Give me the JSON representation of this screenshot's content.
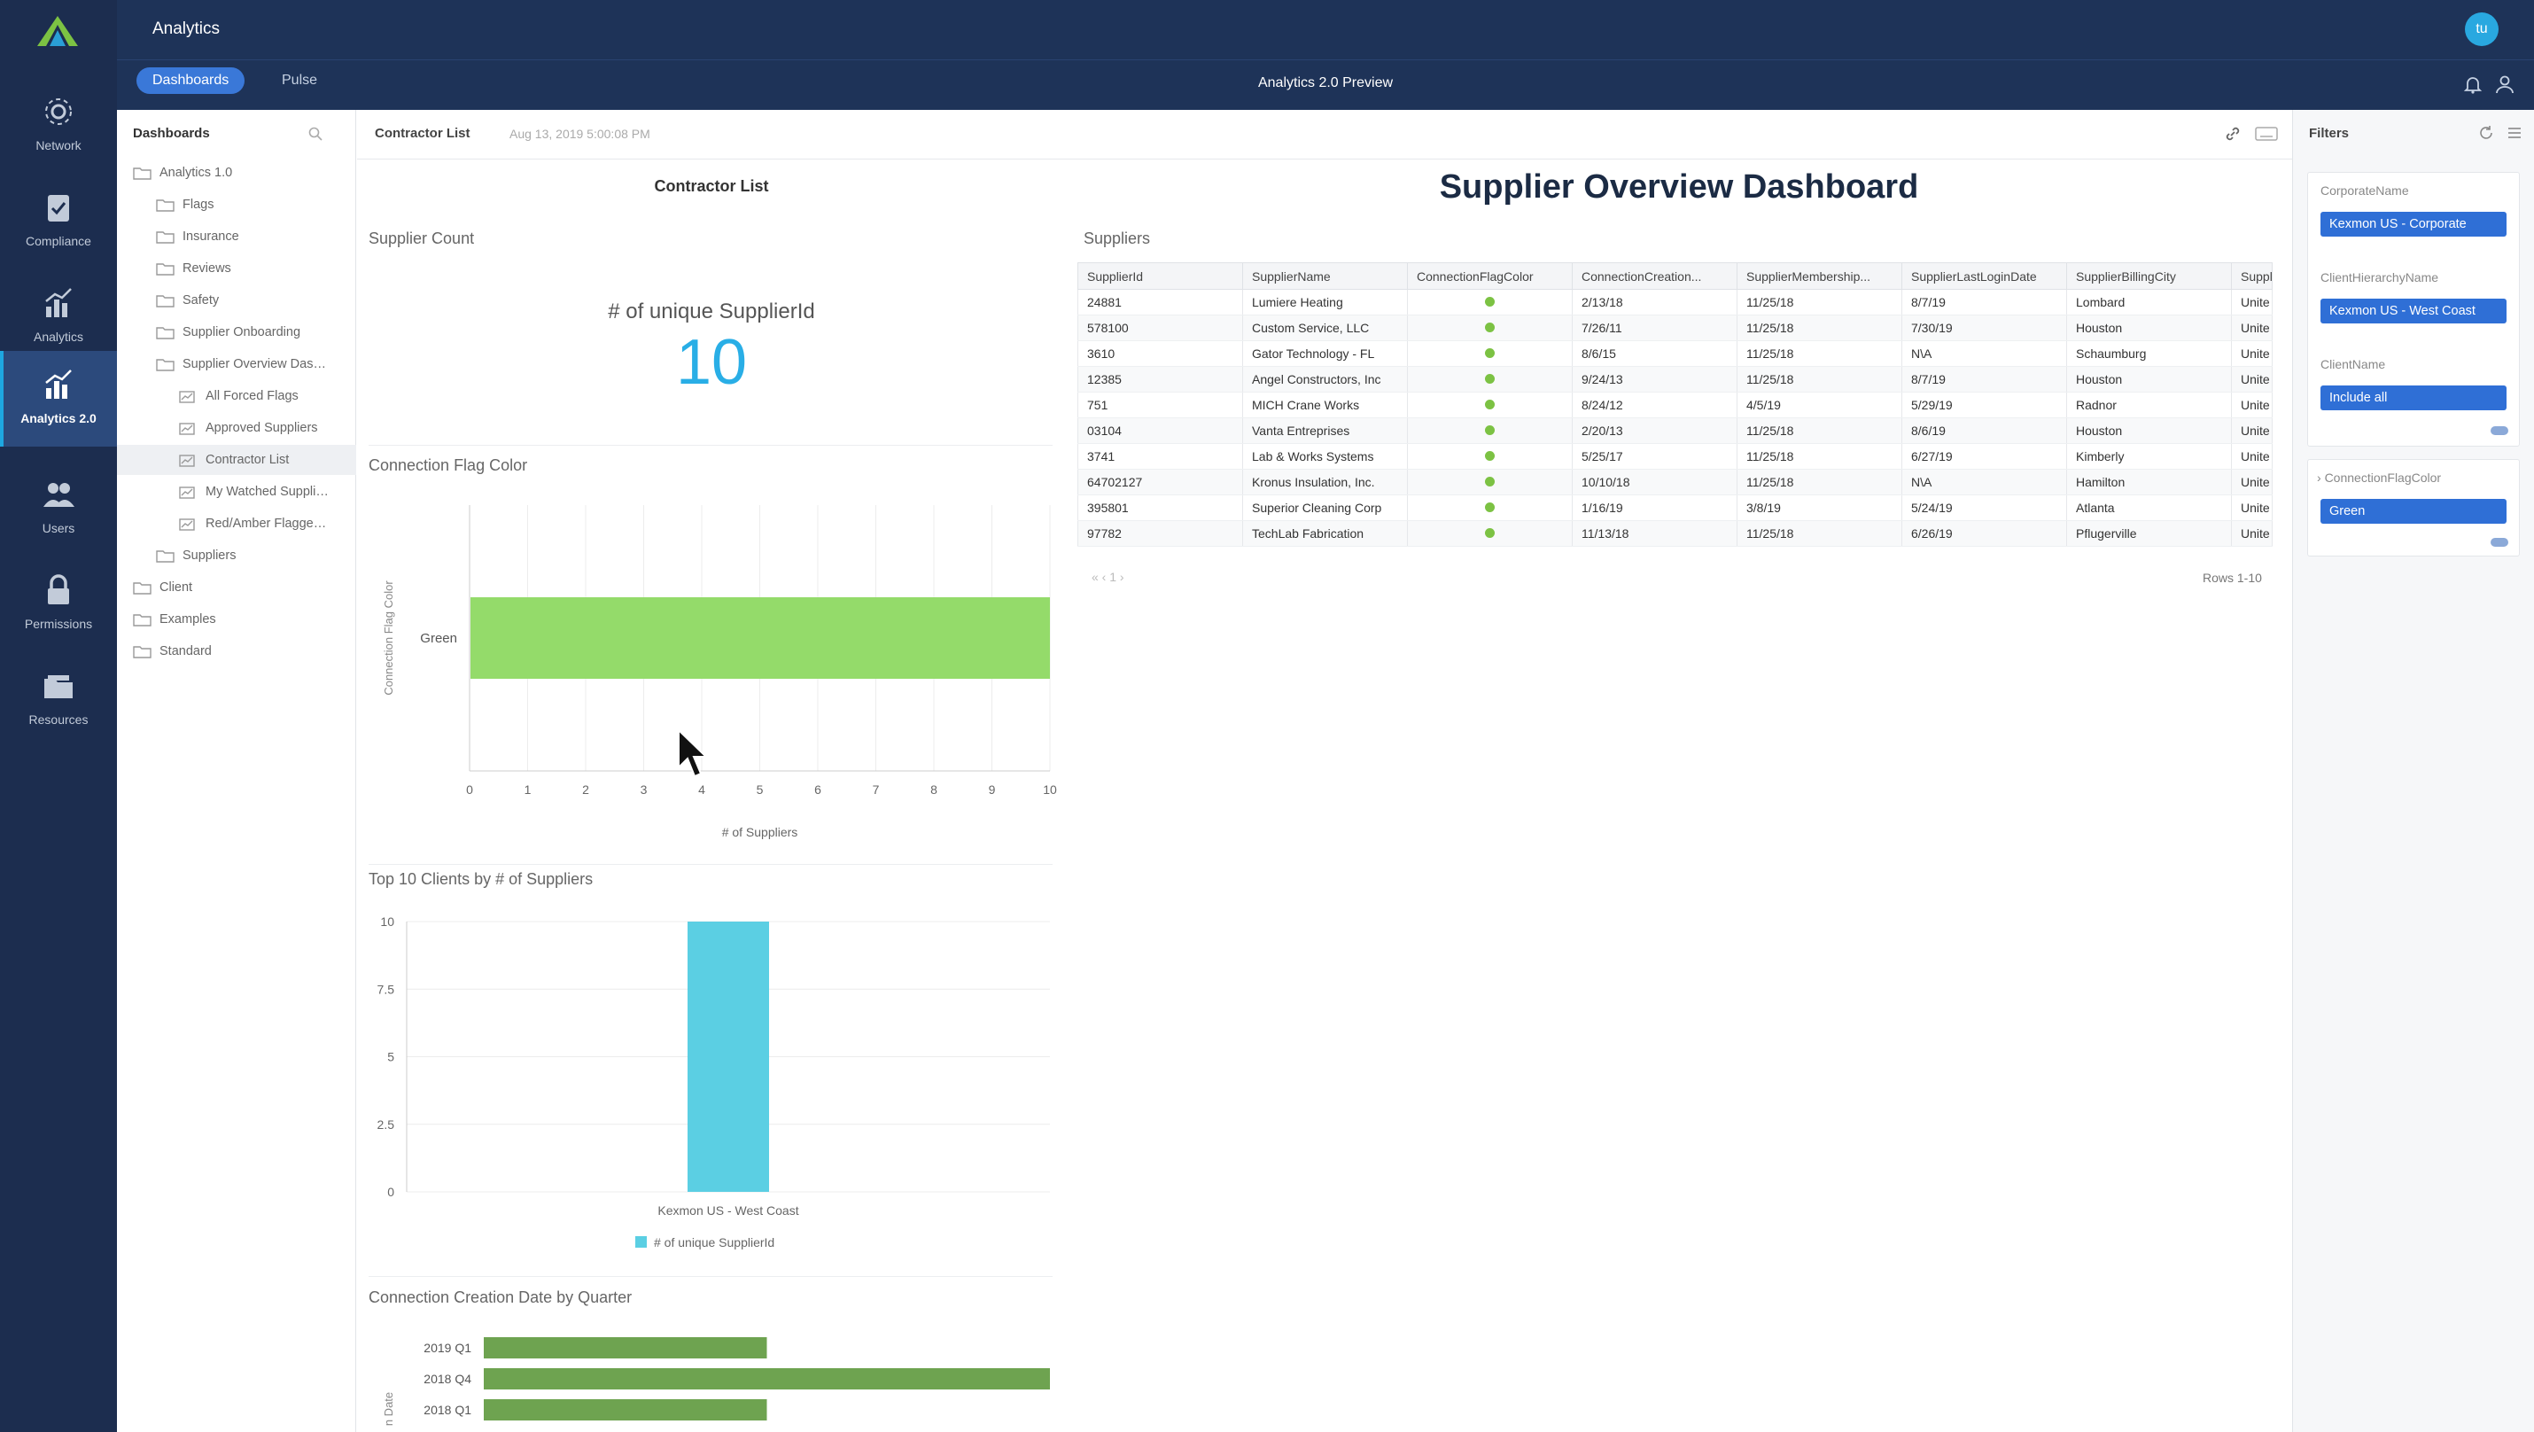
{
  "app": {
    "title": "Analytics",
    "avatar_initials": "tu"
  },
  "nav": [
    {
      "label": "Network",
      "icon": "network-icon"
    },
    {
      "label": "Compliance",
      "icon": "compliance-icon"
    },
    {
      "label": "Analytics",
      "icon": "analytics-icon"
    },
    {
      "label": "Analytics 2.0",
      "icon": "analytics-2-icon",
      "active": true
    },
    {
      "label": "Users",
      "icon": "users-icon"
    },
    {
      "label": "Permissions",
      "icon": "lock-icon"
    },
    {
      "label": "Resources",
      "icon": "folder-icon"
    }
  ],
  "subnav": {
    "tabs": [
      {
        "label": "Dashboards",
        "active": true
      },
      {
        "label": "Pulse"
      }
    ],
    "title": "Analytics 2.0 Preview"
  },
  "tree": {
    "title": "Dashboards",
    "items": [
      {
        "label": "Analytics 1.0"
      },
      {
        "label": "Flags"
      },
      {
        "label": "Insurance"
      },
      {
        "label": "Reviews"
      },
      {
        "label": "Safety"
      },
      {
        "label": "Supplier Onboarding"
      },
      {
        "label": "Supplier Overview Dashb..."
      },
      {
        "label": "All Forced Flags"
      },
      {
        "label": "Approved Suppliers"
      },
      {
        "label": "Contractor List",
        "selected": true
      },
      {
        "label": "My Watched Suppliers"
      },
      {
        "label": "Red/Amber Flagged a..."
      },
      {
        "label": "Suppliers"
      },
      {
        "label": "Client"
      },
      {
        "label": "Examples"
      },
      {
        "label": "Standard"
      }
    ]
  },
  "main": {
    "breadcrumb": "Contractor List",
    "timestamp": "Aug 13, 2019 5:00:08 PM",
    "left_title": "Contractor List",
    "dashboard_title": "Supplier Overview Dashboard",
    "supplier_count": {
      "title": "Supplier Count",
      "label": "# of unique SupplierId",
      "value": "10"
    }
  },
  "table": {
    "title": "Suppliers",
    "columns": [
      "SupplierId",
      "SupplierName",
      "ConnectionFlagColor",
      "ConnectionCreation...",
      "SupplierMembership...",
      "SupplierLastLoginDate",
      "SupplierBillingCity",
      "Suppl"
    ],
    "rows": [
      [
        "24881",
        "Lumiere Heating",
        "",
        "2/13/18",
        "11/25/18",
        "8/7/19",
        "Lombard",
        "Unite"
      ],
      [
        "578100",
        "Custom Service, LLC",
        "",
        "7/26/11",
        "11/25/18",
        "7/30/19",
        "Houston",
        "Unite"
      ],
      [
        "3610",
        "Gator Technology - FL",
        "",
        "8/6/15",
        "11/25/18",
        "N\\A",
        "Schaumburg",
        "Unite"
      ],
      [
        "12385",
        "Angel Constructors, Inc",
        "",
        "9/24/13",
        "11/25/18",
        "8/7/19",
        "Houston",
        "Unite"
      ],
      [
        "751",
        "MICH Crane Works",
        "",
        "8/24/12",
        "4/5/19",
        "5/29/19",
        "Radnor",
        "Unite"
      ],
      [
        "03104",
        "Vanta Entreprises",
        "",
        "2/20/13",
        "11/25/18",
        "8/6/19",
        "Houston",
        "Unite"
      ],
      [
        "3741",
        "Lab & Works Systems",
        "",
        "5/25/17",
        "11/25/18",
        "6/27/19",
        "Kimberly",
        "Unite"
      ],
      [
        "64702127",
        "Kronus Insulation, Inc.",
        "",
        "10/10/18",
        "11/25/18",
        "N\\A",
        "Hamilton",
        "Unite"
      ],
      [
        "395801",
        "Superior Cleaning Corp",
        "",
        "1/16/19",
        "3/8/19",
        "5/24/19",
        "Atlanta",
        "Unite"
      ],
      [
        "97782",
        "TechLab Fabrication",
        "",
        "11/13/18",
        "11/25/18",
        "6/26/19",
        "Pflugerville",
        "Unite"
      ]
    ],
    "pager": "« ‹ 1 ›",
    "rows_label": "Rows 1-10"
  },
  "filters": {
    "title": "Filters",
    "cards": [
      {
        "label": "CorporateName",
        "value": "Kexmon US - Corporate"
      },
      {
        "label": "ClientHierarchyName",
        "value": "Kexmon US - West Coast"
      },
      {
        "label": "ClientName",
        "value": "Include all"
      },
      {
        "label": "ConnectionFlagColor",
        "value": "Green"
      }
    ]
  },
  "colors": {
    "green_bar": "#94db6a",
    "cyan_bar": "#5bcfe3",
    "quarter_bar": "#6ea350",
    "accent": "#2f6fd6"
  },
  "chart_data": [
    {
      "type": "bar",
      "title": "Connection Flag Color",
      "orientation": "horizontal",
      "categories": [
        "Green"
      ],
      "values": [
        10
      ],
      "xlabel": "# of Suppliers",
      "ylabel": "Connection Flag Color",
      "xlim": [
        0,
        10
      ],
      "xticks": [
        "0",
        "1",
        "2",
        "3",
        "4",
        "5",
        "6",
        "7",
        "8",
        "9",
        "10"
      ]
    },
    {
      "type": "bar",
      "title": "Top 10 Clients by # of Suppliers",
      "categories": [
        "Kexmon US - West Coast"
      ],
      "series": [
        {
          "name": "# of unique SupplierId",
          "values": [
            10
          ]
        }
      ],
      "ylim": [
        0,
        10
      ],
      "yticks": [
        "0",
        "2.5",
        "5",
        "7.5",
        "10"
      ],
      "legend": "bottom"
    },
    {
      "type": "bar",
      "title": "Connection Creation Date by Quarter",
      "orientation": "horizontal",
      "categories": [
        "2019 Q1",
        "2018 Q4",
        "2018 Q1"
      ],
      "values": [
        1,
        2,
        1
      ],
      "ylabel": "n Date",
      "xlim": [
        0,
        2
      ]
    }
  ]
}
